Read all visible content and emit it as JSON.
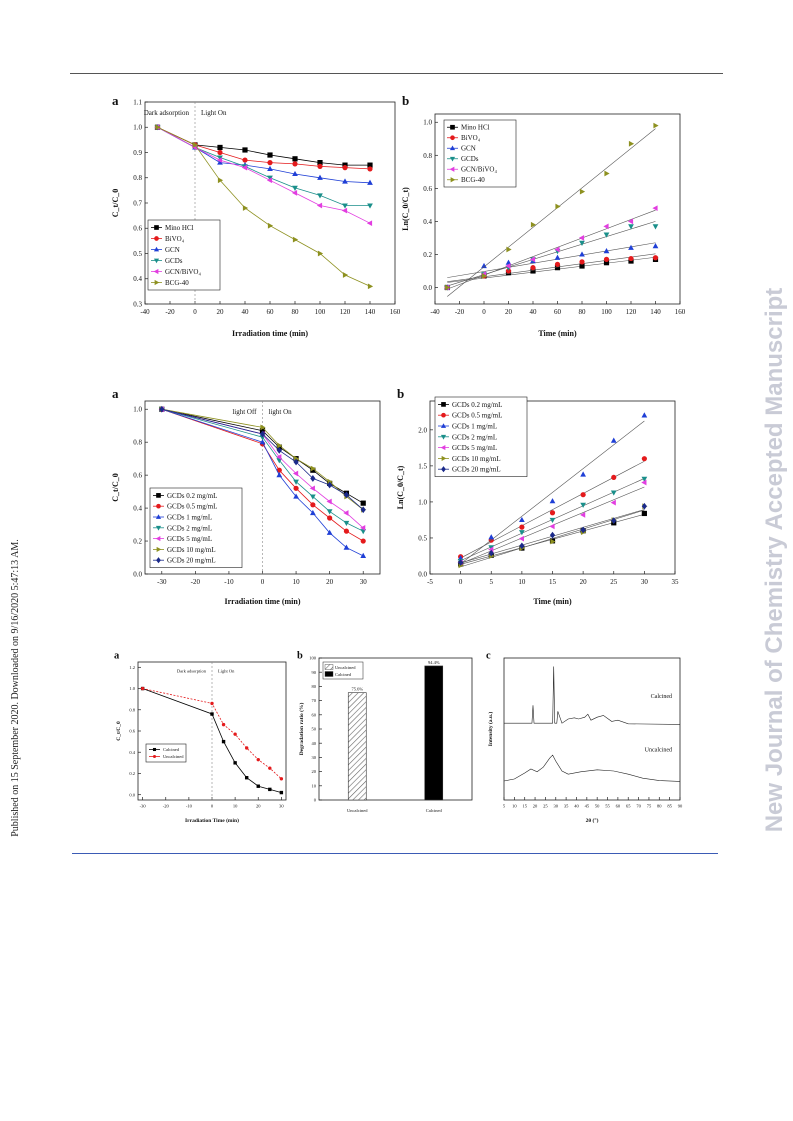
{
  "side_text": {
    "left": "Published on 15 September 2020. Downloaded on 9/16/2020 5:47:13 AM.",
    "right": "New Journal of Chemistry Accepted Manuscript"
  },
  "colors": {
    "top_rule": "#555555",
    "bottom_rule": "#3b5bb5",
    "watermark": "#c9cbd6"
  },
  "chart_data": [
    {
      "id": "fig1a",
      "type": "line",
      "label": "a",
      "xlabel": "Irradiation time (min)",
      "ylabel": "C_t/C_0",
      "xlim": [
        -40,
        160
      ],
      "ylim": [
        0.3,
        1.1
      ],
      "xticks": [
        -40,
        -20,
        0,
        20,
        40,
        60,
        80,
        100,
        120,
        140,
        160
      ],
      "yticks": [
        0.3,
        0.4,
        0.5,
        0.6,
        0.7,
        0.8,
        0.9,
        1.0,
        1.1
      ],
      "annotations": [
        "Dark adsorption",
        "Light On"
      ],
      "divider_x": 0,
      "legend_position": "bottom-left",
      "x": [
        -30,
        0,
        20,
        40,
        60,
        80,
        100,
        120,
        140
      ],
      "series": [
        {
          "name": "Mino HCl",
          "color": "#000000",
          "marker": "square",
          "values": [
            1.0,
            0.93,
            0.92,
            0.91,
            0.89,
            0.875,
            0.86,
            0.85,
            0.85
          ]
        },
        {
          "name": "BiVO₄",
          "color": "#e41a1c",
          "marker": "circle",
          "values": [
            1.0,
            0.93,
            0.9,
            0.87,
            0.86,
            0.855,
            0.845,
            0.84,
            0.835
          ]
        },
        {
          "name": "GCN",
          "color": "#1f3fd6",
          "marker": "triangle-up",
          "values": [
            1.0,
            0.92,
            0.86,
            0.85,
            0.835,
            0.815,
            0.8,
            0.785,
            0.78
          ]
        },
        {
          "name": "GCDs",
          "color": "#1a8f8a",
          "marker": "triangle-down",
          "values": [
            1.0,
            0.92,
            0.88,
            0.845,
            0.8,
            0.76,
            0.73,
            0.69,
            0.69
          ]
        },
        {
          "name": "GCN/BiVO₄",
          "color": "#e23ee0",
          "marker": "triangle-left",
          "values": [
            1.0,
            0.92,
            0.87,
            0.84,
            0.79,
            0.74,
            0.69,
            0.67,
            0.62
          ]
        },
        {
          "name": "BCG-40",
          "color": "#8e9120",
          "marker": "triangle-right",
          "values": [
            1.0,
            0.93,
            0.79,
            0.68,
            0.61,
            0.555,
            0.5,
            0.415,
            0.37
          ]
        }
      ]
    },
    {
      "id": "fig1b",
      "type": "scatter",
      "label": "b",
      "xlabel": "Time (min)",
      "ylabel": "Ln(C_0/C_t)",
      "xlim": [
        -40,
        160
      ],
      "ylim": [
        -0.1,
        1.05
      ],
      "xticks": [
        -40,
        -20,
        0,
        20,
        40,
        60,
        80,
        100,
        120,
        140,
        160
      ],
      "yticks": [
        0.0,
        0.2,
        0.4,
        0.6,
        0.8,
        1.0
      ],
      "legend_position": "top-left",
      "x": [
        -30,
        0,
        20,
        40,
        60,
        80,
        100,
        120,
        140
      ],
      "series": [
        {
          "name": "Mino HCl",
          "color": "#000000",
          "marker": "square",
          "values": [
            0.0,
            0.07,
            0.09,
            0.1,
            0.12,
            0.13,
            0.15,
            0.16,
            0.17
          ]
        },
        {
          "name": "BiVO₄",
          "color": "#e41a1c",
          "marker": "circle",
          "values": [
            0.0,
            0.07,
            0.1,
            0.12,
            0.14,
            0.155,
            0.17,
            0.175,
            0.18
          ]
        },
        {
          "name": "GCN",
          "color": "#1f3fd6",
          "marker": "triangle-up",
          "values": [
            0.0,
            0.13,
            0.15,
            0.16,
            0.18,
            0.2,
            0.22,
            0.24,
            0.25
          ]
        },
        {
          "name": "GCDs",
          "color": "#1a8f8a",
          "marker": "triangle-down",
          "values": [
            0.0,
            0.08,
            0.12,
            0.17,
            0.22,
            0.27,
            0.32,
            0.37,
            0.37
          ]
        },
        {
          "name": "GCN/BiVO₄",
          "color": "#e23ee0",
          "marker": "triangle-left",
          "values": [
            0.0,
            0.08,
            0.13,
            0.17,
            0.23,
            0.3,
            0.37,
            0.4,
            0.48
          ]
        },
        {
          "name": "BCG-40",
          "color": "#8e9120",
          "marker": "triangle-right",
          "values": [
            0.0,
            0.07,
            0.23,
            0.38,
            0.49,
            0.58,
            0.69,
            0.87,
            0.98
          ]
        }
      ]
    },
    {
      "id": "fig2a",
      "type": "line",
      "label": "a",
      "xlabel": "Irradiation time (min)",
      "ylabel": "C_t/C_0",
      "xlim": [
        -35,
        35
      ],
      "ylim": [
        0.0,
        1.05
      ],
      "xticks": [
        -30,
        -20,
        -10,
        0,
        10,
        20,
        30
      ],
      "yticks": [
        0.0,
        0.2,
        0.4,
        0.6,
        0.8,
        1.0
      ],
      "annotations": [
        "light Off",
        "light On"
      ],
      "divider_x": 0,
      "legend_position": "bottom-left",
      "x": [
        -30,
        0,
        5,
        10,
        15,
        20,
        25,
        30
      ],
      "series": [
        {
          "name": "GCDs 0.2 mg/mL",
          "color": "#000000",
          "marker": "square",
          "values": [
            1.0,
            0.87,
            0.77,
            0.7,
            0.63,
            0.55,
            0.49,
            0.43
          ]
        },
        {
          "name": "GCDs 0.5 mg/mL",
          "color": "#e41a1c",
          "marker": "circle",
          "values": [
            1.0,
            0.79,
            0.63,
            0.52,
            0.42,
            0.34,
            0.26,
            0.2
          ]
        },
        {
          "name": "GCDs  1  mg/mL",
          "color": "#1f3fd6",
          "marker": "triangle-up",
          "values": [
            1.0,
            0.8,
            0.6,
            0.47,
            0.37,
            0.25,
            0.16,
            0.11
          ]
        },
        {
          "name": "GCDs  2  mg/mL",
          "color": "#1a8f8a",
          "marker": "triangle-down",
          "values": [
            1.0,
            0.83,
            0.69,
            0.56,
            0.47,
            0.38,
            0.31,
            0.26
          ]
        },
        {
          "name": "GCDs  5  mg/mL",
          "color": "#e23ee0",
          "marker": "triangle-left",
          "values": [
            1.0,
            0.85,
            0.71,
            0.61,
            0.52,
            0.44,
            0.37,
            0.28
          ]
        },
        {
          "name": "GCDs 10 mg/mL",
          "color": "#8e9120",
          "marker": "triangle-right",
          "values": [
            1.0,
            0.89,
            0.78,
            0.7,
            0.64,
            0.56,
            0.47,
            0.39
          ]
        },
        {
          "name": "GCDs  20 mg/mL",
          "color": "#1b2a8a",
          "marker": "diamond",
          "values": [
            1.0,
            0.85,
            0.75,
            0.68,
            0.58,
            0.54,
            0.48,
            0.39
          ]
        }
      ]
    },
    {
      "id": "fig2b",
      "type": "scatter",
      "label": "b",
      "xlabel": "Time (min)",
      "ylabel": "Ln(C_0/C_t)",
      "xlim": [
        -5,
        35
      ],
      "ylim": [
        0.0,
        2.4
      ],
      "xticks": [
        -5,
        0,
        5,
        10,
        15,
        20,
        25,
        30,
        35
      ],
      "yticks": [
        0.0,
        0.5,
        1.0,
        1.5,
        2.0
      ],
      "legend_position": "top-left",
      "x": [
        0,
        5,
        10,
        15,
        20,
        25,
        30
      ],
      "series": [
        {
          "name": "GCDs 0.2 mg/mL",
          "color": "#000000",
          "marker": "square",
          "values": [
            0.14,
            0.26,
            0.36,
            0.46,
            0.6,
            0.71,
            0.84
          ]
        },
        {
          "name": "GCDs 0.5 mg/mL",
          "color": "#e41a1c",
          "marker": "circle",
          "values": [
            0.24,
            0.47,
            0.65,
            0.85,
            1.1,
            1.34,
            1.6
          ]
        },
        {
          "name": "GCDs  1  mg/mL",
          "color": "#1f3fd6",
          "marker": "triangle-up",
          "values": [
            0.22,
            0.51,
            0.75,
            1.01,
            1.38,
            1.85,
            2.2
          ]
        },
        {
          "name": "GCDs  2  mg/mL",
          "color": "#1a8f8a",
          "marker": "triangle-down",
          "values": [
            0.18,
            0.37,
            0.58,
            0.75,
            0.96,
            1.13,
            1.32
          ]
        },
        {
          "name": "GCDs  5  mg/mL",
          "color": "#e23ee0",
          "marker": "triangle-left",
          "values": [
            0.16,
            0.34,
            0.49,
            0.66,
            0.82,
            0.99,
            1.27
          ]
        },
        {
          "name": "GCDs 10 mg/mL",
          "color": "#8e9120",
          "marker": "triangle-right",
          "values": [
            0.12,
            0.25,
            0.36,
            0.45,
            0.58,
            0.75,
            0.94
          ]
        },
        {
          "name": "GCDs  20 mg/mL",
          "color": "#1b2a8a",
          "marker": "diamond",
          "values": [
            0.16,
            0.29,
            0.39,
            0.54,
            0.61,
            0.74,
            0.94
          ]
        }
      ]
    },
    {
      "id": "fig3a",
      "type": "line",
      "label": "a",
      "xlabel": "Irradiation Time (min)",
      "ylabel": "C_t/C_0",
      "xlim": [
        -32,
        32
      ],
      "ylim": [
        -0.05,
        1.25
      ],
      "xticks": [
        -30,
        -20,
        -10,
        0,
        10,
        20,
        30
      ],
      "yticks": [
        0.0,
        0.2,
        0.4,
        0.6,
        0.8,
        1.0,
        1.2
      ],
      "annotations": [
        "Dark adsorption",
        "Light On"
      ],
      "divider_x": 0,
      "legend_position": "bottom-left",
      "x": [
        -30,
        0,
        5,
        10,
        15,
        20,
        25,
        30
      ],
      "series": [
        {
          "name": "Calcined",
          "color": "#000000",
          "marker": "square",
          "values": [
            1.0,
            0.76,
            0.5,
            0.3,
            0.16,
            0.08,
            0.05,
            0.02
          ]
        },
        {
          "name": "Uncalcined",
          "color": "#e41a1c",
          "marker": "circle",
          "values": [
            1.0,
            0.86,
            0.66,
            0.57,
            0.44,
            0.33,
            0.25,
            0.15
          ]
        }
      ]
    },
    {
      "id": "fig3b",
      "type": "bar",
      "label": "b",
      "xlabel": "",
      "ylabel": "Degradation ratio (%)",
      "ylim": [
        0,
        100
      ],
      "yticks": [
        0,
        10,
        20,
        30,
        40,
        50,
        60,
        70,
        80,
        90,
        100
      ],
      "legend_position": "top-left",
      "categories": [
        "Uncalcined",
        "Calcined"
      ],
      "values": [
        75.6,
        94.4
      ],
      "value_labels": [
        "75.6%",
        "94.4%"
      ]
    },
    {
      "id": "fig3c",
      "type": "line",
      "label": "c",
      "xlabel": "2θ (°)",
      "ylabel": "Intensity (a.u.)",
      "xlim": [
        5,
        90
      ],
      "xticks": [
        5,
        10,
        15,
        20,
        25,
        30,
        35,
        40,
        45,
        50,
        55,
        60,
        65,
        70,
        75,
        80,
        85,
        90
      ],
      "series": [
        {
          "name": "Calcined",
          "x": [
            5,
            18.5,
            19.0,
            19.5,
            28.5,
            29.0,
            29.5,
            30.5,
            31.0,
            33,
            36,
            39,
            41,
            44,
            45.5,
            47,
            50,
            53,
            57,
            60,
            65,
            90
          ],
          "values": [
            0.05,
            0.05,
            0.35,
            0.05,
            0.05,
            1.0,
            0.05,
            0.05,
            0.25,
            0.05,
            0.12,
            0.14,
            0.12,
            0.15,
            0.2,
            0.1,
            0.15,
            0.18,
            0.08,
            0.1,
            0.04,
            0.03
          ]
        },
        {
          "name": "Uncalcined",
          "x": [
            5,
            10,
            15,
            18,
            21,
            24,
            27,
            28.5,
            30,
            33,
            36,
            42,
            50,
            58,
            65,
            72,
            80,
            90
          ],
          "values": [
            0.05,
            0.1,
            0.25,
            0.35,
            0.28,
            0.4,
            0.62,
            0.7,
            0.55,
            0.3,
            0.22,
            0.28,
            0.33,
            0.3,
            0.22,
            0.12,
            0.06,
            0.04
          ]
        }
      ]
    }
  ]
}
